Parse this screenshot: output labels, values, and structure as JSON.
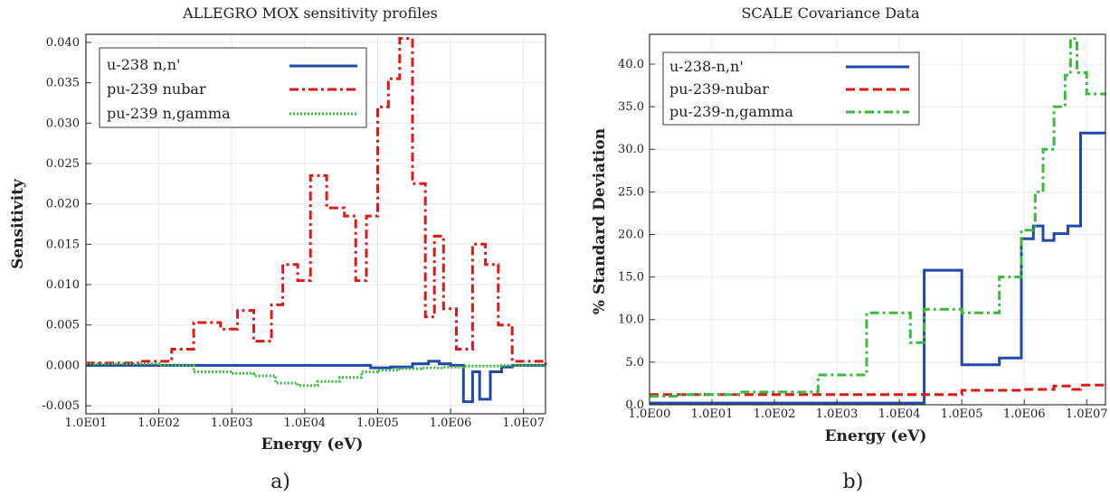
{
  "chart_data": [
    {
      "type": "line",
      "panel_label": "a)",
      "title": "ALLEGRO MOX sensitivity profiles",
      "xlabel": "Energy (eV)",
      "ylabel": "Sensitivity",
      "xscale": "log",
      "xlim": [
        10,
        20000000
      ],
      "ylim": [
        -0.006,
        0.041
      ],
      "x_ticks": [
        10,
        100,
        1000,
        10000,
        100000,
        1000000,
        10000000
      ],
      "x_tick_labels": [
        "1.0E01",
        "1.0E02",
        "1.0E03",
        "1.0E04",
        "1.0E05",
        "1.0E06",
        "1.0E07"
      ],
      "y_ticks": [
        -0.005,
        0.0,
        0.005,
        0.01,
        0.015,
        0.02,
        0.025,
        0.03,
        0.035,
        0.04
      ],
      "y_tick_labels": [
        "-0.005",
        "0.000",
        "0.005",
        "0.010",
        "0.015",
        "0.020",
        "0.025",
        "0.030",
        "0.035",
        "0.040"
      ],
      "legend_position": "top-left",
      "series": [
        {
          "name": "u-238 n,n'",
          "color": "#1f4aa8",
          "dash": "solid",
          "step": true,
          "x": [
            10,
            50000,
            80000,
            150000,
            300000,
            500000,
            700000,
            1000000,
            1500000,
            2000000,
            2500000,
            3500000,
            5000000,
            7000000,
            20000000
          ],
          "y": [
            0.0,
            0.0,
            -0.0003,
            -0.0002,
            0.0002,
            0.0005,
            0.0002,
            0.0,
            -0.0045,
            -0.0008,
            -0.0042,
            -0.0008,
            -0.0002,
            0.0,
            0.0
          ]
        },
        {
          "name": "pu-239 nubar",
          "color": "#dd1a1a",
          "dash": "dashdot",
          "step": true,
          "x": [
            10,
            60,
            150,
            300,
            700,
            1200,
            2000,
            3500,
            5000,
            8000,
            12000,
            20000,
            35000,
            50000,
            70000,
            100000,
            140000,
            200000,
            300000,
            450000,
            600000,
            800000,
            1200000,
            2000000,
            3000000,
            4500000,
            7000000,
            20000000
          ],
          "y": [
            0.0003,
            0.0005,
            0.002,
            0.0053,
            0.0045,
            0.0068,
            0.003,
            0.0075,
            0.0125,
            0.0105,
            0.0235,
            0.0195,
            0.0185,
            0.0105,
            0.0185,
            0.032,
            0.0355,
            0.0405,
            0.0225,
            0.006,
            0.016,
            0.007,
            0.002,
            0.015,
            0.0125,
            0.005,
            0.0005,
            0.0
          ]
        },
        {
          "name": "pu-239 n,gamma",
          "color": "#3cba3c",
          "dash": "dotted",
          "step": true,
          "x": [
            10,
            100,
            300,
            1000,
            2000,
            4000,
            8000,
            15000,
            30000,
            60000,
            100000,
            200000,
            400000,
            800000,
            1500000,
            3000000,
            5000000,
            10000000,
            20000000
          ],
          "y": [
            0.0002,
            0.0,
            -0.0008,
            -0.001,
            -0.0013,
            -0.0022,
            -0.0025,
            -0.002,
            -0.0015,
            -0.0008,
            -0.0006,
            -0.0004,
            -0.0003,
            -0.0002,
            -0.0001,
            -0.0001,
            0.0,
            0.0,
            0.0
          ]
        }
      ]
    },
    {
      "type": "line",
      "panel_label": "b)",
      "title": "SCALE Covariance Data",
      "xlabel": "Energy (eV)",
      "ylabel": "% Standard Deviation",
      "xscale": "log",
      "xlim": [
        1,
        20000000
      ],
      "ylim": [
        0,
        43.5
      ],
      "x_ticks": [
        1,
        10,
        100,
        1000,
        10000,
        100000,
        1000000,
        10000000
      ],
      "x_tick_labels": [
        "1.0E00",
        "1.0E01",
        "1.0E02",
        "1.0E03",
        "1.0E04",
        "1.0E05",
        "1.0E06",
        "1.0E07"
      ],
      "y_ticks": [
        0,
        5,
        10,
        15,
        20,
        25,
        30,
        35,
        40
      ],
      "y_tick_labels": [
        "0.0",
        "5.0",
        "10.0",
        "15.0",
        "20.0",
        "25.0",
        "30.0",
        "35.0",
        "40.0"
      ],
      "legend_position": "top-left",
      "series": [
        {
          "name": "u-238-n,n'",
          "color": "#1f4aa8",
          "dash": "solid",
          "step": true,
          "x": [
            1,
            25000,
            100000,
            400000,
            900000,
            1400000,
            2000000,
            3000000,
            5000000,
            8000000,
            20000000
          ],
          "y": [
            0.2,
            15.8,
            4.7,
            5.5,
            19.5,
            21.0,
            19.3,
            20.1,
            21.0,
            31.9,
            31.9
          ]
        },
        {
          "name": "pu-239-nubar",
          "color": "#dd1a1a",
          "dash": "dashed",
          "step": true,
          "x": [
            1,
            10000,
            100000,
            1000000,
            3000000,
            6000000,
            8000000,
            20000000
          ],
          "y": [
            1.2,
            1.2,
            1.7,
            1.8,
            2.2,
            1.8,
            2.3,
            2.3
          ]
        },
        {
          "name": "pu-239-n,gamma",
          "color": "#3cba3c",
          "dash": "dashdot",
          "step": true,
          "x": [
            1,
            3,
            30,
            500,
            3000,
            15000,
            25000,
            100000,
            400000,
            900000,
            1500000,
            2000000,
            3000000,
            4500000,
            5500000,
            7000000,
            10000000,
            20000000
          ],
          "y": [
            1.0,
            1.2,
            1.5,
            3.5,
            10.8,
            7.3,
            11.2,
            10.8,
            15.0,
            20.5,
            25.0,
            30.0,
            35.0,
            38.7,
            43.0,
            39.0,
            36.5,
            36.5
          ]
        }
      ]
    }
  ]
}
